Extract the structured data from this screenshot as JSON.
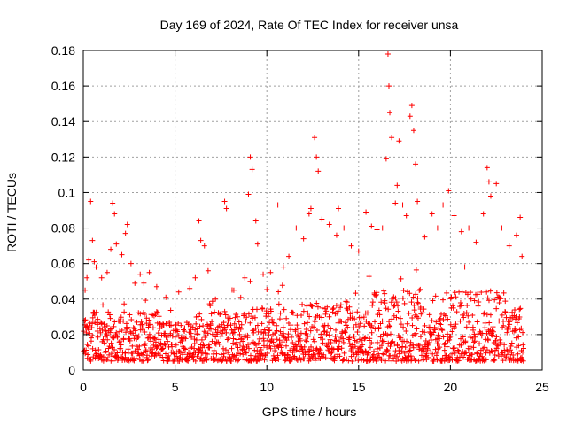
{
  "chart_data": {
    "type": "scatter",
    "title": "Day 169 of 2024, Rate Of TEC Index for receiver unsa",
    "xlabel": "GPS time / hours",
    "ylabel": "ROTI / TECUs",
    "xlim": [
      0,
      25
    ],
    "ylim": [
      0,
      0.18
    ],
    "x_ticks": [
      0,
      5,
      10,
      15,
      20,
      25
    ],
    "x_tick_labels": [
      "0",
      "5",
      "10",
      "15",
      "20",
      "25"
    ],
    "y_ticks": [
      0,
      0.02,
      0.04,
      0.06,
      0.08,
      0.1,
      0.12,
      0.14,
      0.16,
      0.18
    ],
    "y_tick_labels": [
      "0",
      "0.02",
      "0.04",
      "0.06",
      "0.08",
      "0.1",
      "0.12",
      "0.14",
      "0.16",
      "0.18"
    ],
    "grid": true,
    "marker": "+",
    "marker_color": "#ff0000",
    "x_extent_hours": [
      0,
      24
    ],
    "series": [
      {
        "name": "ROTI",
        "points": [
          [
            0.1,
            0.045
          ],
          [
            0.2,
            0.052
          ],
          [
            0.3,
            0.062
          ],
          [
            0.4,
            0.095
          ],
          [
            0.5,
            0.073
          ],
          [
            0.6,
            0.061
          ],
          [
            0.7,
            0.058
          ],
          [
            1.0,
            0.052
          ],
          [
            1.3,
            0.055
          ],
          [
            1.5,
            0.068
          ],
          [
            1.6,
            0.094
          ],
          [
            1.7,
            0.088
          ],
          [
            1.8,
            0.071
          ],
          [
            2.1,
            0.065
          ],
          [
            2.3,
            0.077
          ],
          [
            2.4,
            0.082
          ],
          [
            2.6,
            0.06
          ],
          [
            3.1,
            0.054
          ],
          [
            3.3,
            0.049
          ],
          [
            3.6,
            0.055
          ],
          [
            4.0,
            0.047
          ],
          [
            4.5,
            0.041
          ],
          [
            5.2,
            0.044
          ],
          [
            5.8,
            0.046
          ],
          [
            6.1,
            0.052
          ],
          [
            6.3,
            0.084
          ],
          [
            6.4,
            0.073
          ],
          [
            6.6,
            0.07
          ],
          [
            6.8,
            0.056
          ],
          [
            7.2,
            0.04
          ],
          [
            7.7,
            0.095
          ],
          [
            7.8,
            0.091
          ],
          [
            8.2,
            0.045
          ],
          [
            8.8,
            0.052
          ],
          [
            9.0,
            0.099
          ],
          [
            9.1,
            0.12
          ],
          [
            9.2,
            0.113
          ],
          [
            9.4,
            0.084
          ],
          [
            9.5,
            0.071
          ],
          [
            9.8,
            0.054
          ],
          [
            10.2,
            0.055
          ],
          [
            10.6,
            0.093
          ],
          [
            10.9,
            0.058
          ],
          [
            11.2,
            0.064
          ],
          [
            11.6,
            0.08
          ],
          [
            12.0,
            0.074
          ],
          [
            12.3,
            0.088
          ],
          [
            12.4,
            0.091
          ],
          [
            12.6,
            0.131
          ],
          [
            12.7,
            0.12
          ],
          [
            12.8,
            0.112
          ],
          [
            13.0,
            0.085
          ],
          [
            13.4,
            0.082
          ],
          [
            13.8,
            0.076
          ],
          [
            13.9,
            0.091
          ],
          [
            14.2,
            0.08
          ],
          [
            14.6,
            0.07
          ],
          [
            15.0,
            0.067
          ],
          [
            15.4,
            0.089
          ],
          [
            15.7,
            0.081
          ],
          [
            16.0,
            0.079
          ],
          [
            16.3,
            0.08
          ],
          [
            16.5,
            0.119
          ],
          [
            16.6,
            0.178
          ],
          [
            16.65,
            0.16
          ],
          [
            16.7,
            0.145
          ],
          [
            16.8,
            0.131
          ],
          [
            17.0,
            0.094
          ],
          [
            17.1,
            0.104
          ],
          [
            17.2,
            0.129
          ],
          [
            17.4,
            0.093
          ],
          [
            17.6,
            0.087
          ],
          [
            17.8,
            0.143
          ],
          [
            17.9,
            0.149
          ],
          [
            18.0,
            0.135
          ],
          [
            18.1,
            0.116
          ],
          [
            18.2,
            0.095
          ],
          [
            18.6,
            0.075
          ],
          [
            19.0,
            0.088
          ],
          [
            19.3,
            0.08
          ],
          [
            19.6,
            0.093
          ],
          [
            19.9,
            0.101
          ],
          [
            20.2,
            0.087
          ],
          [
            20.6,
            0.078
          ],
          [
            21.0,
            0.08
          ],
          [
            21.4,
            0.072
          ],
          [
            21.8,
            0.088
          ],
          [
            22.0,
            0.114
          ],
          [
            22.1,
            0.106
          ],
          [
            22.2,
            0.098
          ],
          [
            22.5,
            0.105
          ],
          [
            22.8,
            0.08
          ],
          [
            23.2,
            0.07
          ],
          [
            23.6,
            0.076
          ],
          [
            23.8,
            0.086
          ],
          [
            23.9,
            0.064
          ]
        ]
      }
    ]
  }
}
